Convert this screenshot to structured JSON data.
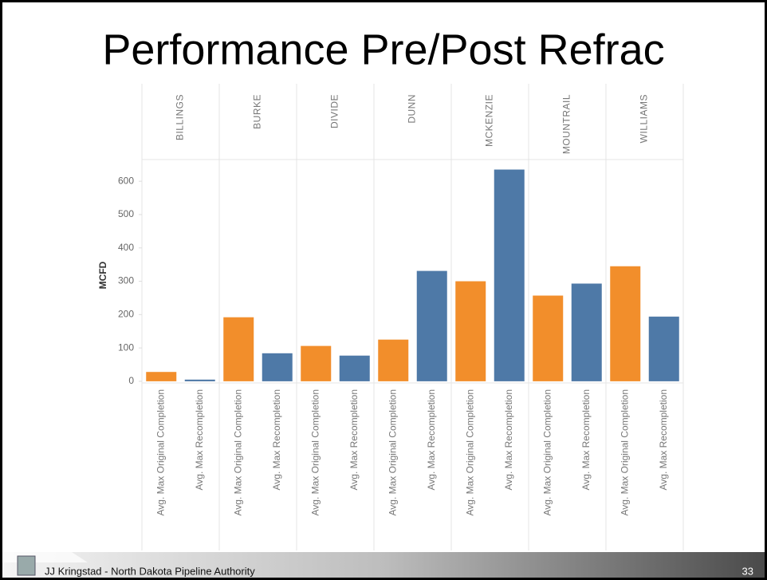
{
  "chart_data": {
    "type": "bar",
    "title": "Performance Pre/Post Refrac",
    "y_label": "MCFD",
    "categories": [
      "BILLINGS",
      "BURKE",
      "DIVIDE",
      "DUNN",
      "MCKENZIE",
      "MOUNTRAIL",
      "WILLIAMS"
    ],
    "series": [
      {
        "name": "Avg. Max Original Completion",
        "color": "#f28e2b",
        "values": [
          28,
          192,
          106,
          125,
          300,
          257,
          345
        ]
      },
      {
        "name": "Avg. Max Recompletion",
        "color": "#4e79a7",
        "values": [
          5,
          84,
          77,
          331,
          635,
          293,
          194
        ]
      }
    ],
    "ylim": [
      -5,
      665
    ],
    "yticks": [
      0,
      100,
      200,
      300,
      400,
      500,
      600
    ],
    "grid": false
  },
  "footer": {
    "text": "JJ Kringstad - North Dakota Pipeline Authority",
    "page": "33"
  }
}
